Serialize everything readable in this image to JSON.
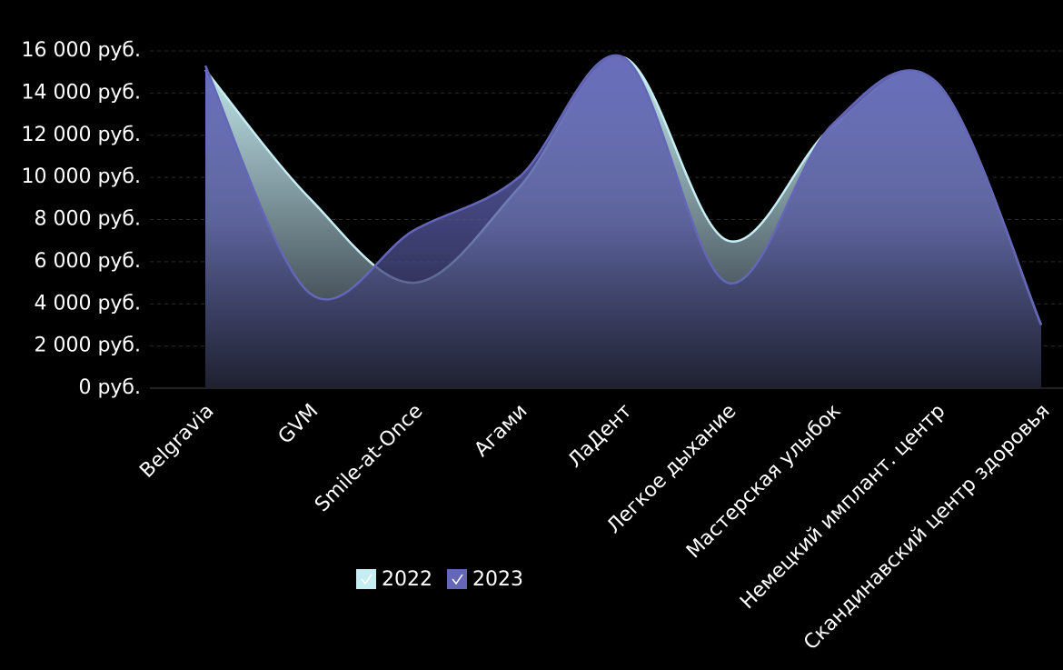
{
  "chart_data": {
    "type": "area",
    "categories": [
      "Belgravia",
      "GVM",
      "Smile-at-Once",
      "Агами",
      "ЛаДент",
      "Легкое дыхание",
      "Мастерская улыбок",
      "Немецкий имплант. центр",
      "Скандинавский центр здоровья"
    ],
    "series": [
      {
        "name": "2022",
        "color": "#c6eef2",
        "values": [
          15100,
          9000,
          5000,
          9500,
          15700,
          7000,
          12400,
          14500,
          3000
        ]
      },
      {
        "name": "2023",
        "color": "#6466b8",
        "values": [
          15300,
          4500,
          7500,
          10000,
          15700,
          5000,
          12500,
          14500,
          3000
        ]
      }
    ],
    "ylim": [
      0,
      16000
    ],
    "yticks": [
      {
        "value": 0,
        "label": "0 руб."
      },
      {
        "value": 2000,
        "label": "2 000 руб."
      },
      {
        "value": 4000,
        "label": "4 000 руб."
      },
      {
        "value": 6000,
        "label": "6 000 руб."
      },
      {
        "value": 8000,
        "label": "8 000 руб."
      },
      {
        "value": 10000,
        "label": "10 000 руб."
      },
      {
        "value": 12000,
        "label": "12 000 руб."
      },
      {
        "value": 14000,
        "label": "14 000 руб."
      },
      {
        "value": 16000,
        "label": "16 000 руб."
      }
    ],
    "grid": true,
    "legend": "bottom"
  }
}
